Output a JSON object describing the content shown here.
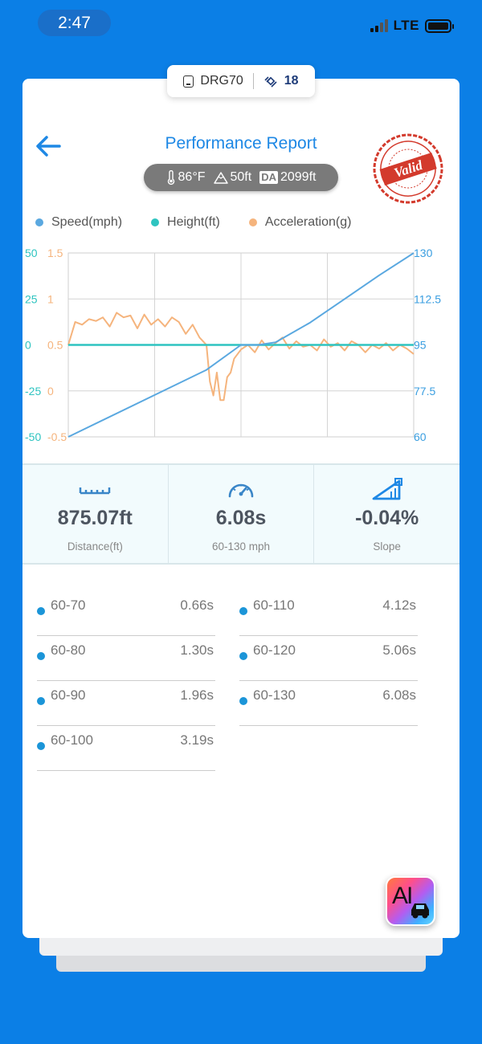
{
  "status_bar": {
    "time": "2:47",
    "network": "LTE"
  },
  "device": {
    "name": "DRG70",
    "satellites": "18"
  },
  "header": {
    "title": "Performance Report",
    "stamp_text": "Valid"
  },
  "conditions": {
    "temperature": "86°F",
    "altitude": "50ft",
    "da_label": "DA",
    "density_altitude": "2099ft"
  },
  "legend": [
    {
      "label": "Speed(mph)",
      "color": "#5aa8e0"
    },
    {
      "label": "Height(ft)",
      "color": "#2ec4c0"
    },
    {
      "label": "Acceleration(g)",
      "color": "#f5b47d"
    }
  ],
  "chart_data": {
    "type": "line",
    "left_axis_height": {
      "ticks": [
        "50",
        "25",
        "0",
        "-25",
        "-50"
      ],
      "range": [
        -50,
        50
      ],
      "color": "#2ec4c0"
    },
    "left_axis_accel": {
      "ticks": [
        "1.5",
        "1",
        "0.5",
        "0",
        "-0.5"
      ],
      "range": [
        -0.5,
        1.5
      ],
      "color": "#f5b47d"
    },
    "right_axis_speed": {
      "ticks": [
        "130",
        "112.5",
        "95",
        "77.5",
        "60"
      ],
      "range": [
        60,
        130
      ],
      "color": "#3a9ee0"
    },
    "grid": true,
    "series": [
      {
        "name": "Speed(mph)",
        "color": "#5aa8e0",
        "t": [
          0,
          0.4,
          0.5,
          0.55,
          0.6,
          0.7,
          0.8,
          0.9,
          1.0
        ],
        "values": [
          60,
          85.5,
          95,
          95,
          96,
          103.5,
          112.5,
          121.5,
          130
        ]
      },
      {
        "name": "Height(ft)",
        "color": "#2ec4c0",
        "t": [
          0,
          1.0
        ],
        "values": [
          0,
          0
        ]
      },
      {
        "name": "Acceleration(g)",
        "color": "#f5b47d",
        "t": [
          0,
          0.02,
          0.04,
          0.06,
          0.08,
          0.1,
          0.12,
          0.14,
          0.16,
          0.18,
          0.2,
          0.22,
          0.24,
          0.26,
          0.28,
          0.3,
          0.32,
          0.34,
          0.36,
          0.38,
          0.4,
          0.41,
          0.42,
          0.43,
          0.44,
          0.45,
          0.46,
          0.47,
          0.48,
          0.5,
          0.52,
          0.54,
          0.56,
          0.58,
          0.6,
          0.62,
          0.64,
          0.66,
          0.68,
          0.7,
          0.72,
          0.74,
          0.76,
          0.78,
          0.8,
          0.82,
          0.84,
          0.86,
          0.88,
          0.9,
          0.92,
          0.94,
          0.96,
          0.98,
          1.0
        ],
        "values": [
          0.5,
          0.75,
          0.72,
          0.78,
          0.76,
          0.8,
          0.7,
          0.85,
          0.8,
          0.82,
          0.68,
          0.83,
          0.72,
          0.78,
          0.7,
          0.8,
          0.75,
          0.62,
          0.72,
          0.58,
          0.5,
          0.1,
          -0.05,
          0.2,
          -0.1,
          -0.1,
          0.15,
          0.2,
          0.35,
          0.45,
          0.5,
          0.42,
          0.55,
          0.45,
          0.52,
          0.58,
          0.46,
          0.54,
          0.48,
          0.5,
          0.44,
          0.56,
          0.48,
          0.52,
          0.44,
          0.54,
          0.5,
          0.42,
          0.5,
          0.46,
          0.52,
          0.44,
          0.5,
          0.46,
          0.4
        ]
      }
    ]
  },
  "stats": [
    {
      "value": "875.07ft",
      "label": "Distance(ft)",
      "icon": "ruler-icon"
    },
    {
      "value": "6.08s",
      "label": "60-130 mph",
      "icon": "speedometer-icon"
    },
    {
      "value": "-0.04%",
      "label": "Slope",
      "icon": "slope-icon"
    }
  ],
  "splits": [
    {
      "range": "60-70",
      "time": "0.66s"
    },
    {
      "range": "60-80",
      "time": "1.30s"
    },
    {
      "range": "60-90",
      "time": "1.96s"
    },
    {
      "range": "60-100",
      "time": "3.19s"
    },
    {
      "range": "60-110",
      "time": "4.12s"
    },
    {
      "range": "60-120",
      "time": "5.06s"
    },
    {
      "range": "60-130",
      "time": "6.08s"
    }
  ],
  "ai_button": {
    "label": "AI"
  }
}
